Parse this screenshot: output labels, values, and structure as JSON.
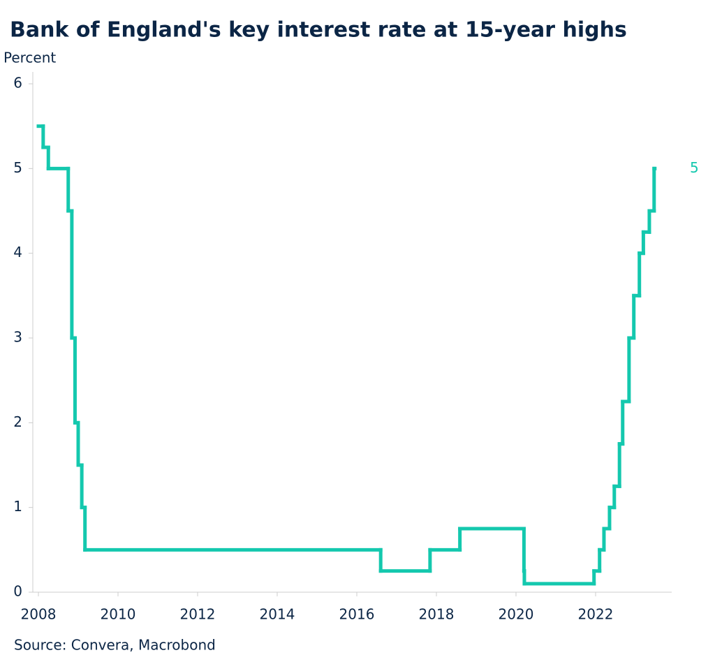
{
  "chart_data": {
    "type": "line",
    "step": "post",
    "title": "Bank of England's key interest rate at 15-year highs",
    "y_label": "Percent",
    "source": "Source: Convera, Macrobond",
    "xlim": [
      2007.95,
      2023.9
    ],
    "xticks": [
      2008,
      2010,
      2012,
      2014,
      2016,
      2018,
      2020,
      2022
    ],
    "ylim": [
      0,
      6.2
    ],
    "yticks": [
      0,
      1,
      2,
      3,
      4,
      5,
      6
    ],
    "series": [
      {
        "color": "#14c8ae",
        "x": [
          2008.0,
          2008.12,
          2008.25,
          2008.75,
          2008.84,
          2008.92,
          2009.0,
          2009.09,
          2009.17,
          2016.6,
          2017.84,
          2018.59,
          2020.2,
          2020.21,
          2021.96,
          2022.1,
          2022.21,
          2022.35,
          2022.47,
          2022.6,
          2022.68,
          2022.84,
          2022.96,
          2023.1,
          2023.2,
          2023.35,
          2023.47
        ],
        "values": [
          5.5,
          5.25,
          5.0,
          4.5,
          3.0,
          2.0,
          1.5,
          1.0,
          0.5,
          0.25,
          0.5,
          0.75,
          0.25,
          0.1,
          0.25,
          0.5,
          0.75,
          1.0,
          1.25,
          1.75,
          2.25,
          3.0,
          3.5,
          4.0,
          4.25,
          4.5,
          5.0
        ]
      }
    ]
  }
}
